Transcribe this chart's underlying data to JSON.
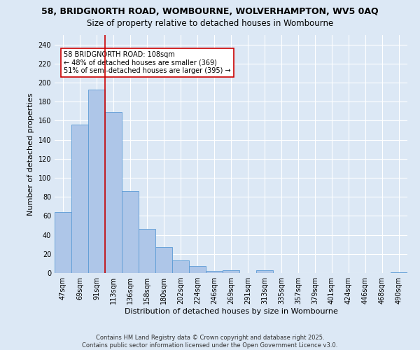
{
  "title_line1": "58, BRIDGNORTH ROAD, WOMBOURNE, WOLVERHAMPTON, WV5 0AQ",
  "title_line2": "Size of property relative to detached houses in Wombourne",
  "xlabel": "Distribution of detached houses by size in Wombourne",
  "ylabel": "Number of detached properties",
  "categories": [
    "47sqm",
    "69sqm",
    "91sqm",
    "113sqm",
    "136sqm",
    "158sqm",
    "180sqm",
    "202sqm",
    "224sqm",
    "246sqm",
    "269sqm",
    "291sqm",
    "313sqm",
    "335sqm",
    "357sqm",
    "379sqm",
    "401sqm",
    "424sqm",
    "446sqm",
    "468sqm",
    "490sqm"
  ],
  "values": [
    64,
    156,
    193,
    169,
    86,
    46,
    27,
    13,
    7,
    2,
    3,
    0,
    3,
    0,
    0,
    0,
    0,
    0,
    0,
    0,
    1
  ],
  "bar_color": "#aec6e8",
  "bar_edge_color": "#5b9bd5",
  "vline_color": "#cc0000",
  "vline_pos": 2.5,
  "annotation_text": "58 BRIDGNORTH ROAD: 108sqm\n← 48% of detached houses are smaller (369)\n51% of semi-detached houses are larger (395) →",
  "annotation_box_color": "#cc0000",
  "ylim": [
    0,
    250
  ],
  "yticks": [
    0,
    20,
    40,
    60,
    80,
    100,
    120,
    140,
    160,
    180,
    200,
    220,
    240
  ],
  "background_color": "#dce8f5",
  "grid_color": "#ffffff",
  "footer": "Contains HM Land Registry data © Crown copyright and database right 2025.\nContains public sector information licensed under the Open Government Licence v3.0.",
  "title_fontsize": 9,
  "subtitle_fontsize": 8.5,
  "axis_label_fontsize": 8,
  "tick_fontsize": 7,
  "annot_fontsize": 7
}
